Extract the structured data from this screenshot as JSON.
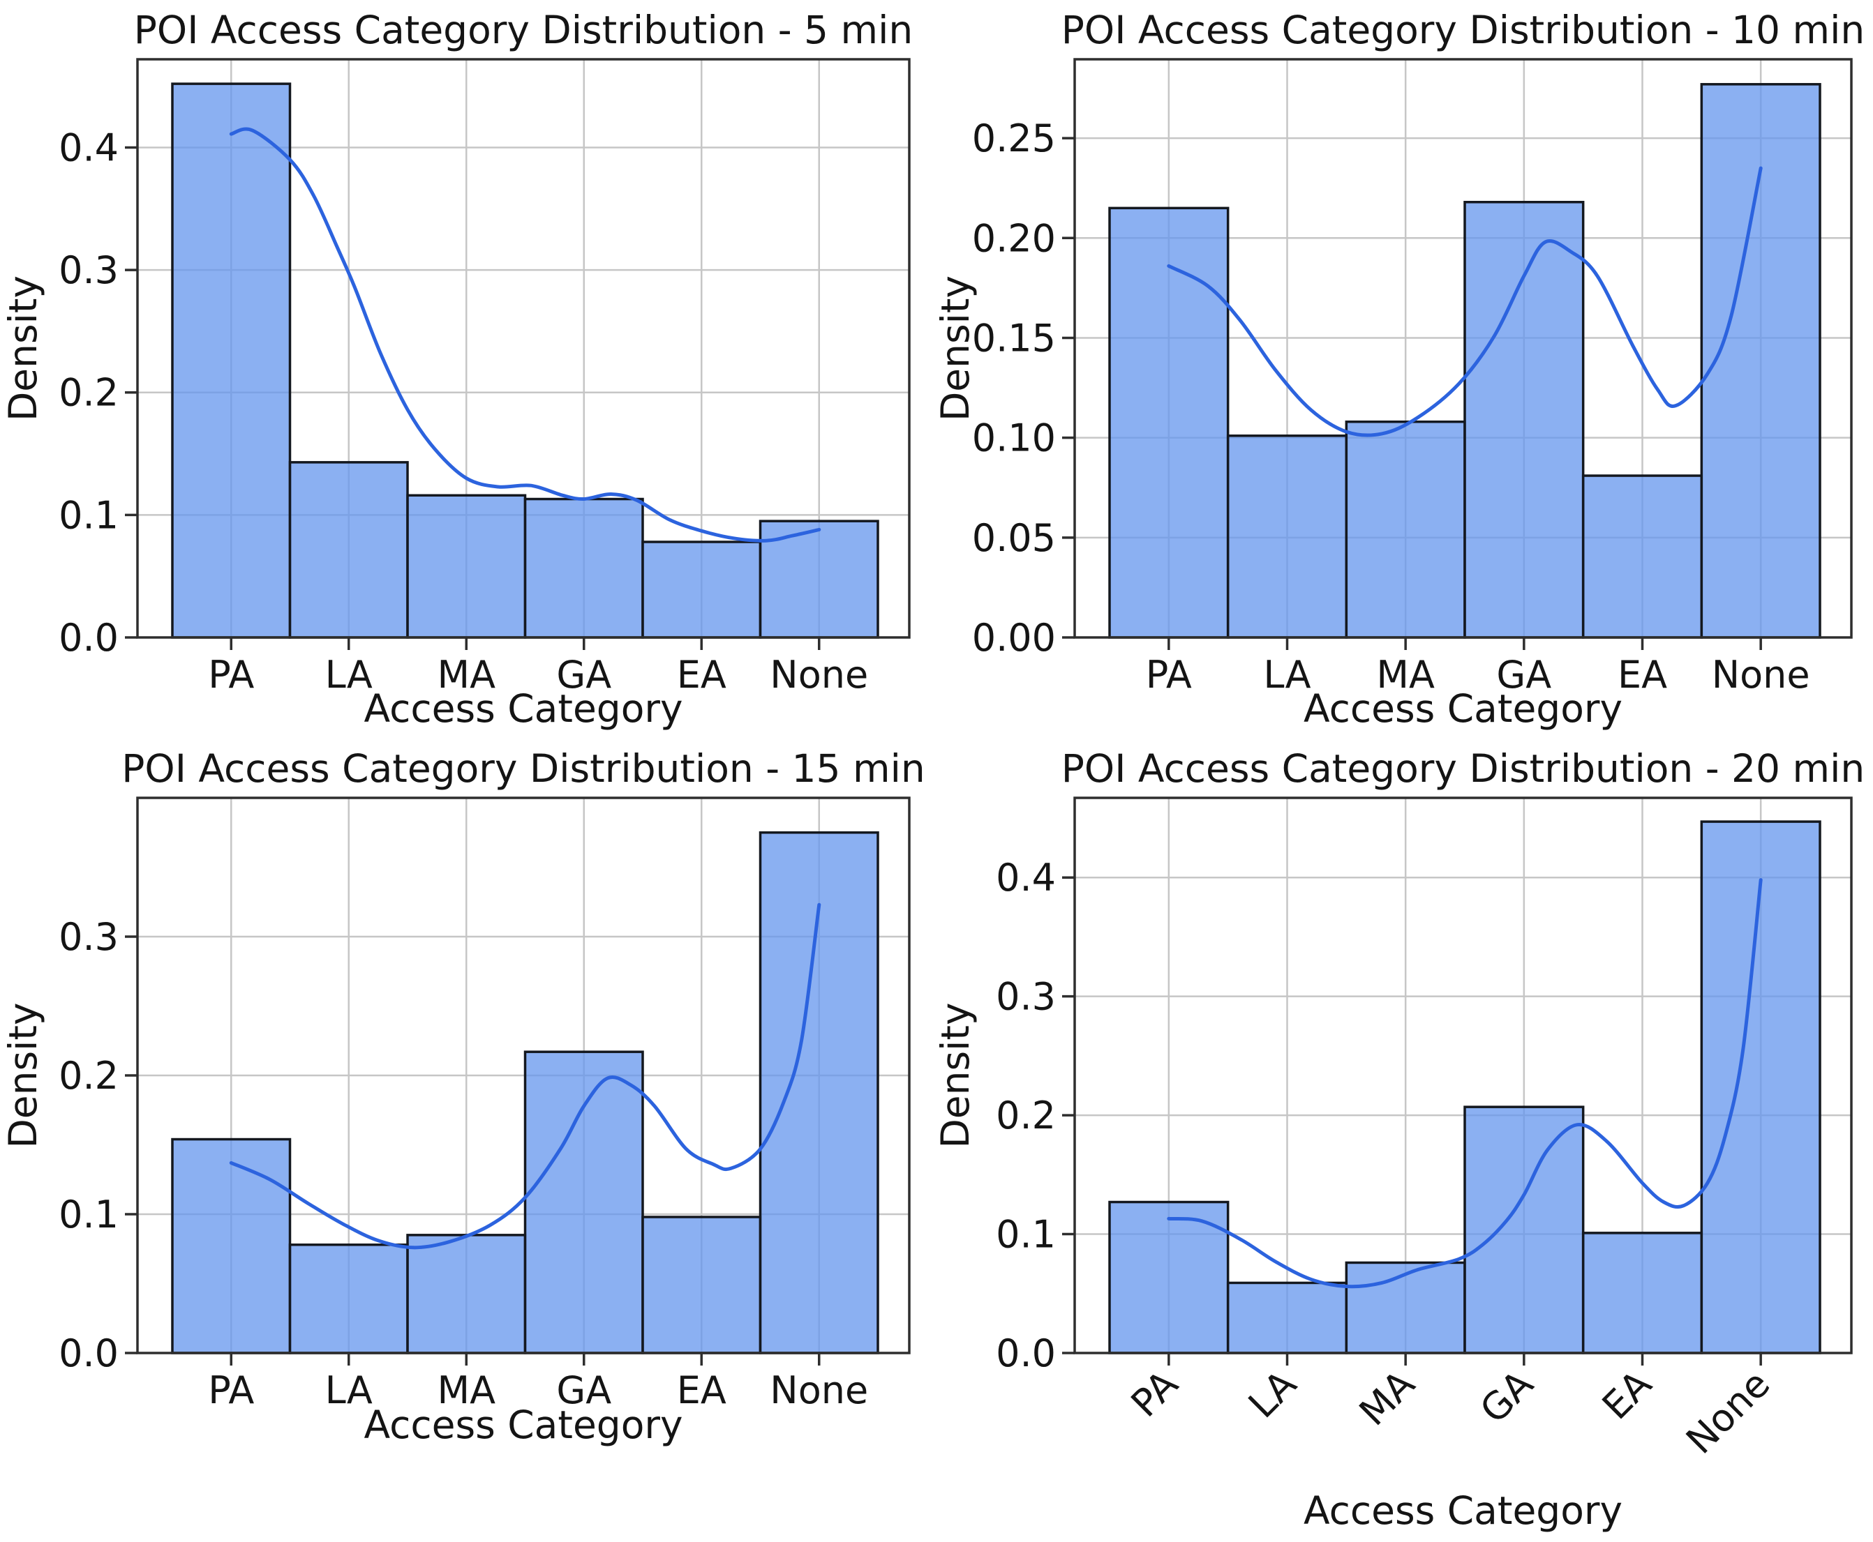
{
  "window": {
    "background": "#ffffff"
  },
  "style": {
    "bar_fill": "#6495ED",
    "bar_fill_opacity": 0.75,
    "bar_edge": "#14181f",
    "kde_color": "#2c63de",
    "grid_color": "#c6c6c6",
    "spine_color": "#2e2e2e",
    "text_color": "#141414"
  },
  "chart_data": [
    {
      "type": "histogram",
      "kde_overlay": true,
      "title": "POI Access Category Distribution - 5 min",
      "xlabel": "Access Category",
      "ylabel": "Density",
      "categories": [
        "PA",
        "LA",
        "MA",
        "GA",
        "EA",
        "None"
      ],
      "values": [
        0.452,
        0.143,
        0.116,
        0.113,
        0.078,
        0.095
      ],
      "kde_x": [
        0,
        0.18,
        0.5,
        0.7,
        0.9,
        1.05,
        1.27,
        1.5,
        1.73,
        2.0,
        2.27,
        2.55,
        2.82,
        3.0,
        3.23,
        3.45,
        3.73,
        4.0,
        4.27,
        4.55,
        4.77,
        5.0
      ],
      "kde_y": [
        0.411,
        0.414,
        0.39,
        0.361,
        0.319,
        0.286,
        0.232,
        0.186,
        0.154,
        0.13,
        0.123,
        0.124,
        0.116,
        0.113,
        0.117,
        0.112,
        0.096,
        0.087,
        0.081,
        0.079,
        0.083,
        0.088
      ],
      "yticks": [
        0,
        0.1,
        0.2,
        0.3,
        0.4
      ],
      "ytick_decimals": 1,
      "ylim": [
        0,
        0.472
      ],
      "xtick_rotation": 0,
      "grid": true,
      "legend": null
    },
    {
      "type": "histogram",
      "kde_overlay": true,
      "title": "POI Access Category Distribution - 10 min",
      "xlabel": "Access Category",
      "ylabel": "Density",
      "categories": [
        "PA",
        "LA",
        "MA",
        "GA",
        "EA",
        "None"
      ],
      "values": [
        0.215,
        0.101,
        0.108,
        0.218,
        0.081,
        0.277
      ],
      "kde_x": [
        0,
        0.33,
        0.6,
        0.9,
        1.2,
        1.5,
        1.8,
        2.1,
        2.45,
        2.75,
        3.0,
        3.18,
        3.4,
        3.62,
        3.92,
        4.13,
        4.28,
        4.55,
        4.75,
        5.0
      ],
      "kde_y": [
        0.186,
        0.176,
        0.159,
        0.134,
        0.114,
        0.103,
        0.102,
        0.11,
        0.127,
        0.151,
        0.181,
        0.198,
        0.193,
        0.181,
        0.146,
        0.124,
        0.116,
        0.132,
        0.161,
        0.235
      ],
      "yticks": [
        0,
        0.05,
        0.1,
        0.15,
        0.2,
        0.25
      ],
      "ytick_decimals": 2,
      "ylim": [
        0,
        0.2895
      ],
      "xtick_rotation": 0,
      "grid": true,
      "legend": null
    },
    {
      "type": "histogram",
      "kde_overlay": true,
      "title": "POI Access Category Distribution - 15 min",
      "xlabel": "Access Category",
      "ylabel": "Density",
      "categories": [
        "PA",
        "LA",
        "MA",
        "GA",
        "EA",
        "None"
      ],
      "values": [
        0.154,
        0.078,
        0.085,
        0.217,
        0.098,
        0.375
      ],
      "kde_x": [
        0,
        0.33,
        0.65,
        0.95,
        1.25,
        1.55,
        1.85,
        2.2,
        2.5,
        2.8,
        3.0,
        3.2,
        3.4,
        3.6,
        3.87,
        4.1,
        4.25,
        4.5,
        4.7,
        4.85,
        5.0
      ],
      "kde_y": [
        0.137,
        0.125,
        0.108,
        0.093,
        0.081,
        0.076,
        0.08,
        0.092,
        0.112,
        0.147,
        0.178,
        0.198,
        0.193,
        0.178,
        0.147,
        0.136,
        0.133,
        0.147,
        0.181,
        0.225,
        0.323
      ],
      "yticks": [
        0,
        0.1,
        0.2,
        0.3
      ],
      "ytick_decimals": 1,
      "ylim": [
        0,
        0.4
      ],
      "xtick_rotation": 0,
      "grid": true,
      "legend": null
    },
    {
      "type": "histogram",
      "kde_overlay": true,
      "title": "POI Access Category Distribution - 20 min",
      "xlabel": "Access Category",
      "ylabel": "Density",
      "categories": [
        "PA",
        "LA",
        "MA",
        "GA",
        "EA",
        "None"
      ],
      "values": [
        0.127,
        0.059,
        0.076,
        0.207,
        0.101,
        0.447
      ],
      "kde_x": [
        0,
        0.28,
        0.6,
        0.9,
        1.2,
        1.5,
        1.8,
        2.1,
        2.45,
        2.65,
        2.85,
        3.0,
        3.2,
        3.45,
        3.7,
        4.0,
        4.18,
        4.35,
        4.55,
        4.7,
        4.85,
        5.0
      ],
      "kde_y": [
        0.113,
        0.111,
        0.096,
        0.077,
        0.062,
        0.056,
        0.059,
        0.07,
        0.079,
        0.091,
        0.111,
        0.133,
        0.171,
        0.192,
        0.178,
        0.143,
        0.127,
        0.124,
        0.143,
        0.183,
        0.255,
        0.398
      ],
      "yticks": [
        0,
        0.1,
        0.2,
        0.3,
        0.4
      ],
      "ytick_decimals": 1,
      "ylim": [
        0,
        0.467
      ],
      "xtick_rotation": 45,
      "grid": true,
      "legend": null
    }
  ]
}
